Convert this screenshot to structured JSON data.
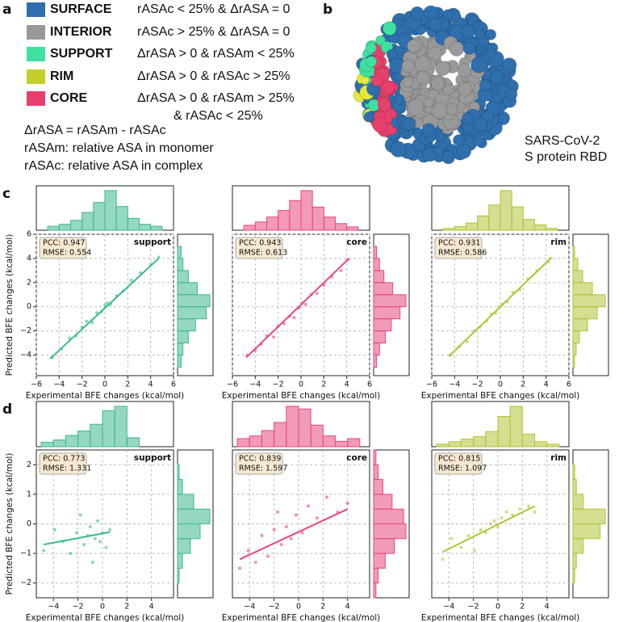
{
  "panel_labels": [
    "a",
    "b",
    "c",
    "d"
  ],
  "legend": [
    {
      "label": "SURFACE",
      "color": "#2f6fad",
      "rule": [
        "rASAc < 25% & ΔrASA = 0"
      ]
    },
    {
      "label": "INTERIOR",
      "color": "#999999",
      "rule": [
        "rASAc > 25% & ΔrASA = 0"
      ]
    },
    {
      "label": "SUPPORT",
      "color": "#3fe0a0",
      "rule": [
        "ΔrASA > 0 & rASAm < 25%"
      ]
    },
    {
      "label": "RIM",
      "color": "#c5cf2c",
      "rule": [
        "ΔrASA > 0 & rASAc > 25%"
      ]
    },
    {
      "label": "CORE",
      "color": "#e8406c",
      "rule": [
        "ΔrASA > 0 & rASAm > 25%",
        "& rASAc < 25%"
      ]
    }
  ],
  "definitions": [
    "ΔrASA = rASAm - rASAc",
    "rASAm: relative ASA in monomer",
    "rASAc: relative ASA in complex"
  ],
  "structure_caption": [
    "SARS-CoV-2",
    "S protein RBD"
  ],
  "chart_data": [
    {
      "type": "scatter",
      "label": "support",
      "stats": [
        "PCC: 0.947",
        "RMSE: 0.554"
      ],
      "color": "#3cb98a",
      "x": [
        -4.6,
        -3.8,
        -3.1,
        -2.5,
        -2.0,
        -1.6,
        -1.1,
        -0.7,
        -0.3,
        0,
        0.2,
        0.5,
        1.0,
        1.6,
        2.3,
        3.1,
        4.0,
        4.7
      ],
      "y": [
        -4.2,
        -3.5,
        -2.6,
        -2.4,
        -1.7,
        -1.2,
        -1.3,
        -0.5,
        -0.4,
        0.1,
        0.3,
        0.2,
        0.9,
        1.3,
        2.2,
        2.8,
        3.5,
        4.1
      ],
      "fit": {
        "x": [
          -4.8,
          4.7
        ],
        "y": [
          -4.3,
          4.0
        ]
      },
      "xlim": [
        -6,
        6
      ],
      "ylim": [
        -5.7,
        6
      ],
      "xticks": [
        {
          "value": -6,
          "label": "−6"
        },
        {
          "value": -4,
          "label": "−4"
        },
        {
          "value": -2,
          "label": "−2"
        },
        0,
        2,
        4,
        6
      ],
      "yticks": [
        {
          "value": -4,
          "label": "−4"
        },
        {
          "value": -2,
          "label": "−2"
        },
        0,
        2,
        4,
        6
      ],
      "ytick_labels": true,
      "xlabel": "Experimental BFE changes (kcal/mol)",
      "ylabel": "Predicted BFE changes (kcal/mol)",
      "grid": true,
      "x_hist": {
        "bins": [
          -5,
          -4,
          -3,
          -2,
          -1,
          0,
          1,
          2,
          3,
          4,
          5
        ],
        "counts": [
          2,
          3,
          5,
          9,
          14,
          20,
          12,
          6,
          3,
          2
        ]
      },
      "y_hist": {
        "bins": [
          -5,
          -4,
          -3,
          -2,
          -1,
          0,
          1,
          2,
          3,
          4,
          5
        ],
        "counts": [
          2,
          3,
          6,
          10,
          16,
          18,
          11,
          6,
          3,
          2
        ]
      }
    },
    {
      "type": "scatter",
      "label": "core",
      "stats": [
        "PCC: 0.943",
        "RMSE: 0.613"
      ],
      "color": "#e8487a",
      "x": [
        -4.7,
        -4.0,
        -3.5,
        -3.0,
        -2.4,
        -2.0,
        -1.5,
        -1.0,
        -0.6,
        -0.2,
        0.1,
        0.4,
        0.9,
        1.4,
        2.0,
        2.7,
        3.5,
        4.1
      ],
      "y": [
        -4.0,
        -3.6,
        -3.1,
        -2.4,
        -2.5,
        -1.6,
        -1.4,
        -0.8,
        -0.9,
        -0.1,
        0.3,
        0.2,
        1.0,
        1.1,
        1.8,
        2.5,
        3.0,
        3.9
      ],
      "fit": {
        "x": [
          -4.8,
          4.2
        ],
        "y": [
          -4.2,
          4.0
        ]
      },
      "xlim": [
        -6,
        6
      ],
      "ylim": [
        -5.7,
        6
      ],
      "xticks": [
        {
          "value": -6,
          "label": "−6"
        },
        {
          "value": -4,
          "label": "−4"
        },
        {
          "value": -2,
          "label": "−2"
        },
        0,
        2,
        4,
        6
      ],
      "yticks": [
        -4,
        -2,
        0,
        2,
        4,
        6
      ],
      "ytick_labels": false,
      "xlabel": "Experimental BFE changes (kcal/mol)",
      "grid": true,
      "x_hist": {
        "bins": [
          -5,
          -4,
          -3,
          -2,
          -1,
          0,
          1,
          2,
          3,
          4,
          5
        ],
        "counts": [
          3,
          5,
          8,
          12,
          18,
          24,
          14,
          8,
          4,
          2
        ]
      },
      "y_hist": {
        "bins": [
          -5,
          -4,
          -3,
          -2,
          -1,
          0,
          1,
          2,
          3,
          4,
          5
        ],
        "counts": [
          2,
          4,
          8,
          12,
          18,
          22,
          13,
          7,
          4,
          2
        ]
      }
    },
    {
      "type": "scatter",
      "label": "rim",
      "stats": [
        "PCC: 0.931",
        "RMSE: 0.586"
      ],
      "color": "#b3c236",
      "x": [
        -4.4,
        -3.6,
        -2.9,
        -2.3,
        -1.8,
        -1.2,
        -0.8,
        -0.4,
        -0.1,
        0.2,
        0.6,
        1.1,
        1.7,
        2.4,
        3.2,
        4.2
      ],
      "y": [
        -4.0,
        -3.3,
        -2.9,
        -2.0,
        -1.7,
        -1.2,
        -0.6,
        -0.5,
        0,
        0.2,
        0.4,
        1.2,
        1.4,
        2.3,
        3.0,
        3.7
      ],
      "fit": {
        "x": [
          -4.5,
          4.5
        ],
        "y": [
          -4.1,
          4.1
        ]
      },
      "xlim": [
        -6,
        6
      ],
      "ylim": [
        -5.7,
        6
      ],
      "xticks": [
        {
          "value": -6,
          "label": "−6"
        },
        {
          "value": -4,
          "label": "−4"
        },
        {
          "value": -2,
          "label": "−2"
        },
        0,
        2,
        4,
        6
      ],
      "yticks": [
        -4,
        -2,
        0,
        2,
        4,
        6
      ],
      "ytick_labels": false,
      "xlabel": "Experimental BFE changes (kcal/mol)",
      "grid": true,
      "x_hist": {
        "bins": [
          -5,
          -4,
          -3,
          -2,
          -1,
          0,
          1,
          2,
          3,
          4,
          5
        ],
        "counts": [
          1,
          2,
          4,
          8,
          14,
          22,
          13,
          6,
          3,
          1
        ]
      },
      "y_hist": {
        "bins": [
          -5,
          -4,
          -3,
          -2,
          -1,
          0,
          1,
          2,
          3,
          4,
          5
        ],
        "counts": [
          1,
          2,
          4,
          9,
          15,
          20,
          12,
          6,
          3,
          1
        ]
      }
    },
    {
      "type": "scatter",
      "label": "support",
      "stats": [
        "PCC: 0.773",
        "RMSE: 1.331"
      ],
      "color": "#3cb98a",
      "x": [
        -4.8,
        -3.9,
        -3.2,
        -2.6,
        -2.1,
        -1.8,
        -1.5,
        -1.2,
        -1.0,
        -0.8,
        -0.6,
        -0.4,
        -0.2,
        0,
        0.3,
        0.6
      ],
      "y": [
        -0.9,
        -0.2,
        -0.6,
        -1.0,
        -0.3,
        0.3,
        -0.7,
        -0.4,
        -0.1,
        -1.3,
        -0.5,
        0.1,
        -0.6,
        -0.3,
        -0.8,
        -0.2
      ],
      "fit": {
        "x": [
          -4.8,
          0.6
        ],
        "y": [
          -0.7,
          -0.28
        ]
      },
      "xlim": [
        -5.4,
        5.8
      ],
      "ylim": [
        -2.5,
        2.5
      ],
      "xticks": [
        {
          "value": -4,
          "label": "−4"
        },
        {
          "value": -2,
          "label": "−2"
        },
        0,
        2,
        4
      ],
      "yticks": [
        {
          "value": -2,
          "label": "−2"
        },
        {
          "value": -1,
          "label": "−1"
        },
        0,
        1,
        2
      ],
      "ytick_labels": true,
      "xlabel": "Experimental BFE changes (kcal/mol)",
      "ylabel": "Predicted BFE changes (kcal/mol)",
      "grid": true,
      "x_hist": {
        "bins": [
          -5,
          -4,
          -3,
          -2,
          -1,
          0,
          1,
          2,
          3,
          4,
          5
        ],
        "counts": [
          2,
          3,
          5,
          7,
          10,
          16,
          18,
          4,
          0,
          0
        ]
      },
      "y_hist": {
        "bins": [
          -2.5,
          -2,
          -1.5,
          -1,
          -0.5,
          0,
          0.5,
          1,
          1.5,
          2,
          2.5
        ],
        "counts": [
          0,
          1,
          3,
          8,
          14,
          20,
          10,
          3,
          1,
          0
        ]
      }
    },
    {
      "type": "scatter",
      "label": "core",
      "stats": [
        "PCC: 0.839",
        "RMSE: 1.597"
      ],
      "color": "#e8487a",
      "x": [
        -4.8,
        -4.1,
        -3.5,
        -3.0,
        -2.5,
        -2.0,
        -1.7,
        -1.4,
        -1.0,
        -0.6,
        -0.2,
        0.3,
        0.8,
        1.5,
        2.3,
        3.2,
        4.0
      ],
      "y": [
        -1.5,
        -0.9,
        -1.3,
        -0.4,
        -1.1,
        -0.2,
        0.4,
        -0.7,
        -0.1,
        -0.5,
        0.3,
        -0.3,
        0.6,
        0.2,
        0.9,
        0.4,
        0.7
      ],
      "fit": {
        "x": [
          -4.8,
          4.0
        ],
        "y": [
          -1.2,
          0.5
        ]
      },
      "xlim": [
        -5.4,
        5.8
      ],
      "ylim": [
        -2.5,
        2.5
      ],
      "xticks": [
        {
          "value": -4,
          "label": "−4"
        },
        {
          "value": -2,
          "label": "−2"
        },
        0,
        2,
        4
      ],
      "yticks": [
        -2,
        -1,
        0,
        1,
        2
      ],
      "ytick_labels": false,
      "xlabel": "Experimental BFE changes (kcal/mol)",
      "grid": true,
      "x_hist": {
        "bins": [
          -5,
          -4,
          -3,
          -2,
          -1,
          0,
          1,
          2,
          3,
          4,
          5
        ],
        "counts": [
          3,
          4,
          6,
          9,
          15,
          14,
          8,
          4,
          2,
          3
        ]
      },
      "y_hist": {
        "bins": [
          -2.5,
          -2,
          -1.5,
          -1,
          -0.5,
          0,
          0.5,
          1,
          1.5,
          2,
          2.5
        ],
        "counts": [
          1,
          2,
          5,
          9,
          14,
          13,
          8,
          4,
          2,
          1
        ]
      }
    },
    {
      "type": "scatter",
      "label": "rim",
      "stats": [
        "PCC: 0.815",
        "RMSE: 1.097"
      ],
      "color": "#b3c236",
      "x": [
        -4.5,
        -3.8,
        -3.0,
        -2.4,
        -1.9,
        -1.4,
        -1.0,
        -0.6,
        -0.3,
        0,
        0.3,
        0.7,
        1.2,
        1.8,
        2.5,
        3.0
      ],
      "y": [
        -1.2,
        -0.5,
        -0.8,
        -0.4,
        -0.9,
        -0.2,
        -0.3,
        0,
        0.1,
        -0.1,
        0.2,
        0.4,
        0.3,
        0.5,
        0.6,
        0.4
      ],
      "fit": {
        "x": [
          -4.5,
          3.0
        ],
        "y": [
          -0.95,
          0.6
        ]
      },
      "xlim": [
        -5.4,
        5.8
      ],
      "ylim": [
        -2.5,
        2.5
      ],
      "xticks": [
        {
          "value": -4,
          "label": "−4"
        },
        {
          "value": -2,
          "label": "−2"
        },
        0,
        2,
        4
      ],
      "yticks": [
        -2,
        -1,
        0,
        1,
        2
      ],
      "ytick_labels": false,
      "xlabel": "Experimental BFE changes (kcal/mol)",
      "grid": true,
      "x_hist": {
        "bins": [
          -5,
          -4,
          -3,
          -2,
          -1,
          0,
          1,
          2,
          3,
          4,
          5
        ],
        "counts": [
          1,
          2,
          3,
          4,
          6,
          12,
          16,
          5,
          2,
          1
        ]
      },
      "y_hist": {
        "bins": [
          -2.5,
          -2,
          -1.5,
          -1,
          -0.5,
          0,
          0.5,
          1,
          1.5,
          2,
          2.5
        ],
        "counts": [
          0,
          1,
          2,
          6,
          16,
          19,
          6,
          2,
          1,
          0
        ]
      }
    }
  ]
}
